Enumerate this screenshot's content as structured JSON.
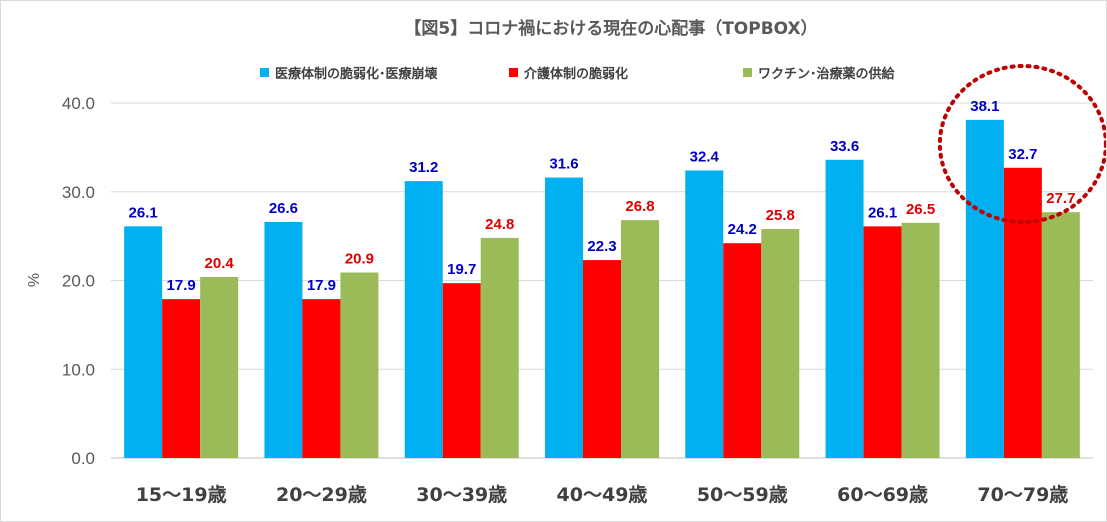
{
  "chart_data": {
    "type": "bar",
    "title": "【図5】コロナ禍における現在の心配事（TOPBOX）",
    "ylabel": "%",
    "xlabel": "",
    "ylim": [
      0,
      40
    ],
    "yticks": [
      "0.0",
      "10.0",
      "20.0",
      "30.0",
      "40.0"
    ],
    "grid": true,
    "legend_position": "top",
    "categories": [
      "15～19歳",
      "20～29歳",
      "30～39歳",
      "40～49歳",
      "50～59歳",
      "60～69歳",
      "70～79歳"
    ],
    "series": [
      {
        "name": "医療体制の脆弱化･医療崩壊",
        "color": "#00b0f0",
        "label_color": "#0000c0",
        "values": [
          26.1,
          26.6,
          31.2,
          31.6,
          32.4,
          33.6,
          38.1
        ]
      },
      {
        "name": "介護体制の脆弱化",
        "color": "#ff0000",
        "label_color": "#0000c0",
        "values": [
          17.9,
          17.9,
          19.7,
          22.3,
          24.2,
          26.1,
          32.7
        ]
      },
      {
        "name": "ワクチン･治療薬の供給",
        "color": "#9bbb59",
        "label_color": "#e00000",
        "values": [
          20.4,
          20.9,
          24.8,
          26.8,
          25.8,
          26.5,
          27.7
        ]
      }
    ],
    "value_labels": [
      [
        "26.1",
        "17.9",
        "20.4"
      ],
      [
        "26.6",
        "17.9",
        "20.9"
      ],
      [
        "31.2",
        "19.7",
        "24.8"
      ],
      [
        "31.6",
        "22.3",
        "26.8"
      ],
      [
        "32.4",
        "24.2",
        "25.8"
      ],
      [
        "33.6",
        "26.1",
        "26.5"
      ],
      [
        "38.1",
        "32.7",
        "27.7"
      ]
    ],
    "annotation": {
      "type": "dotted-circle",
      "target_category": "70～79歳",
      "color": "#c00000"
    }
  }
}
